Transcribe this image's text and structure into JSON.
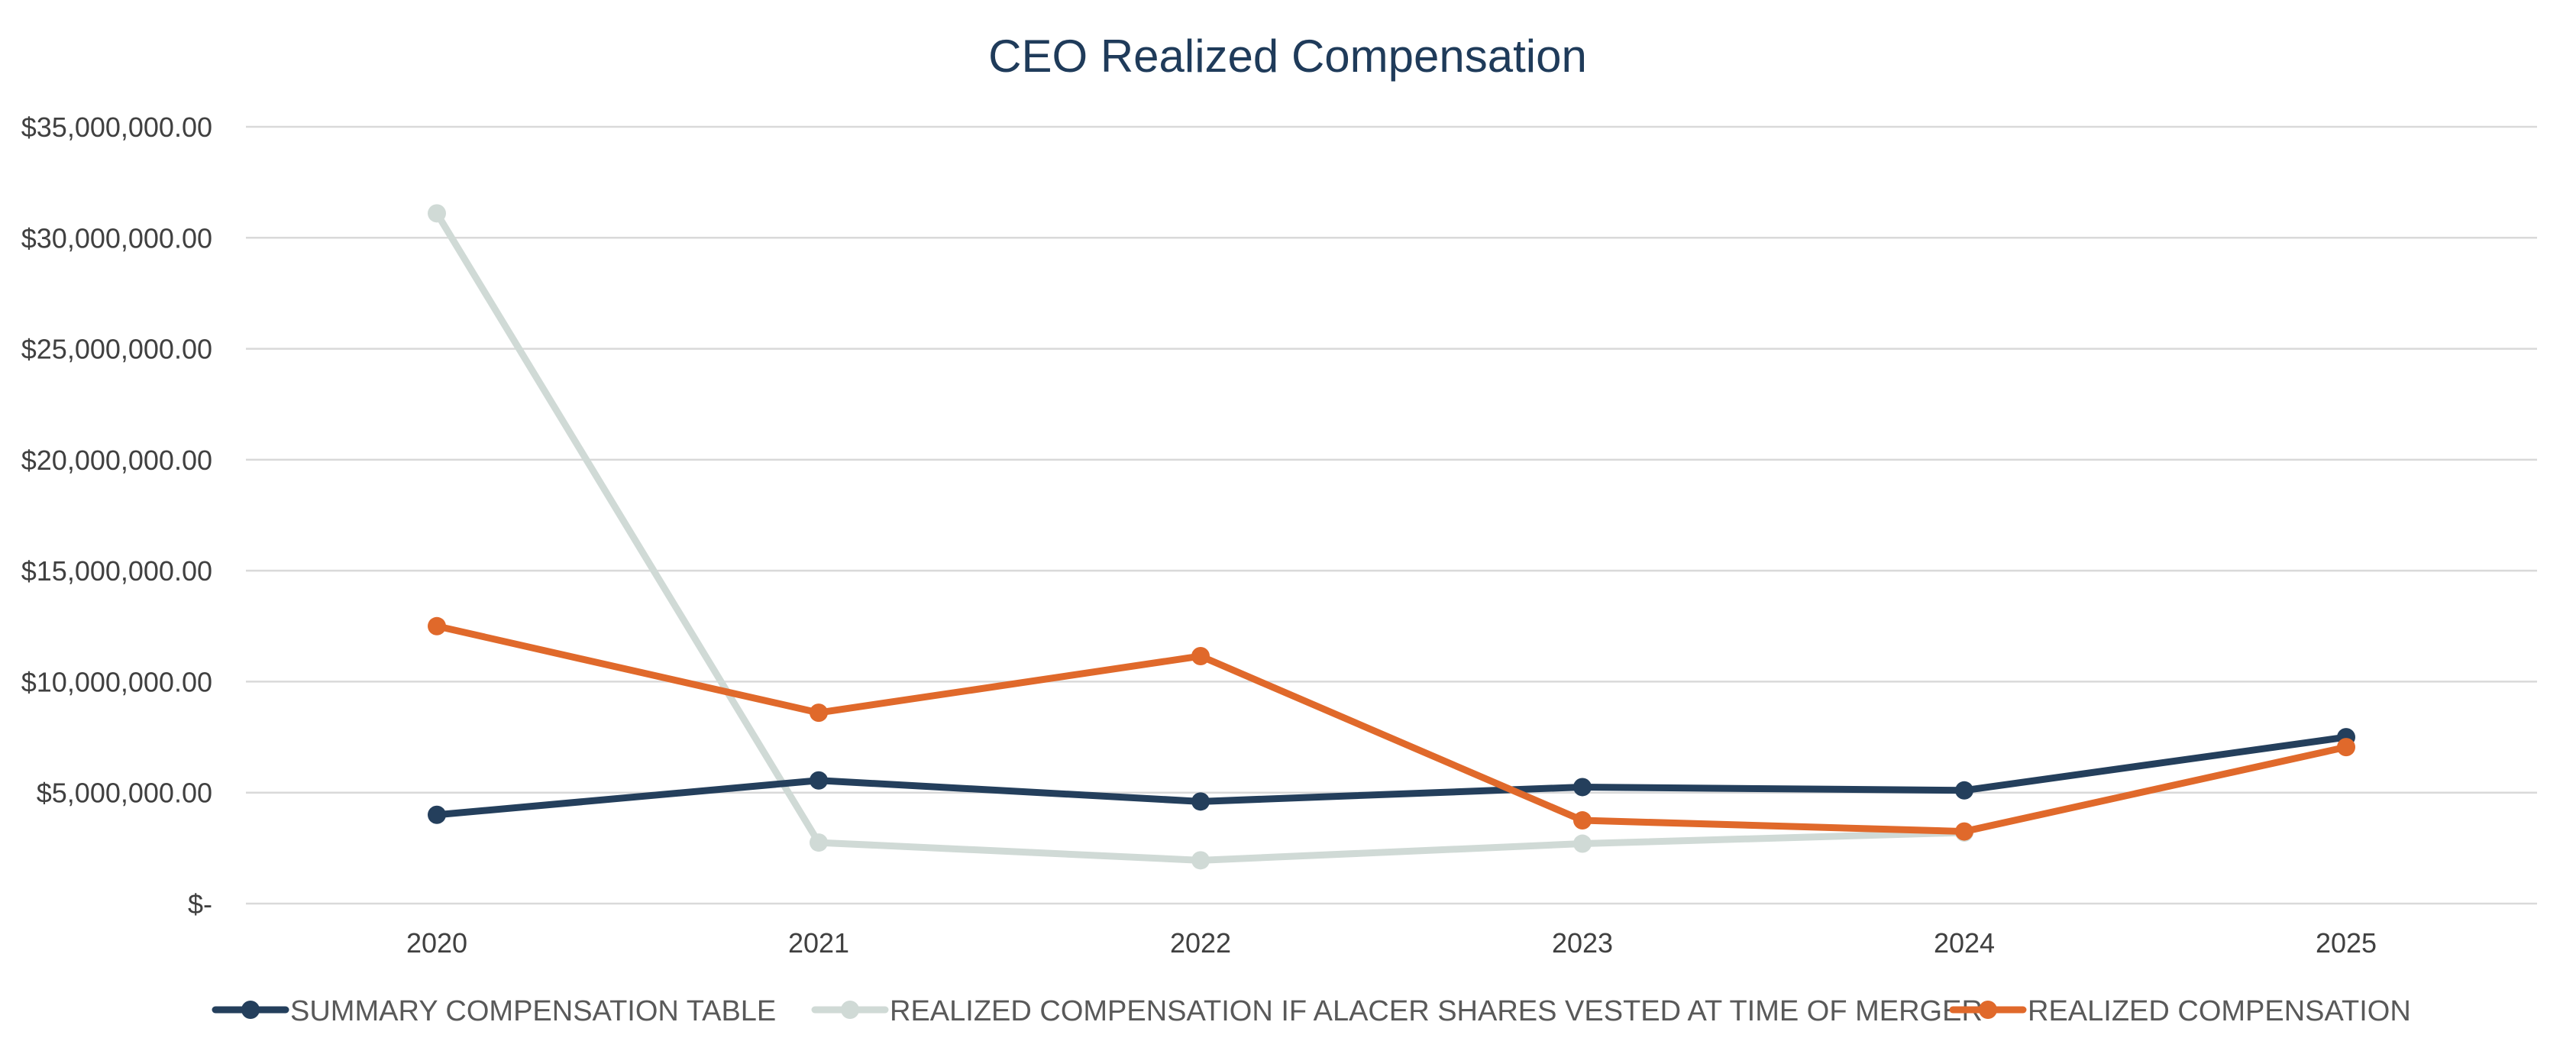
{
  "chart_data": {
    "type": "line",
    "title": "CEO Realized Compensation",
    "xlabel": "",
    "ylabel": "",
    "categories": [
      "2020",
      "2021",
      "2022",
      "2023",
      "2024",
      "2025"
    ],
    "y_ticks": [
      0,
      5000000,
      10000000,
      15000000,
      20000000,
      25000000,
      30000000,
      35000000
    ],
    "y_tick_labels": [
      "$-",
      "$5,000,000.00",
      "$10,000,000.00",
      "$15,000,000.00",
      "$20,000,000.00",
      "$25,000,000.00",
      "$30,000,000.00",
      "$35,000,000.00"
    ],
    "ylim": [
      0,
      35000000
    ],
    "grid": true,
    "legend_position": "bottom",
    "series": [
      {
        "name": "SUMMARY COMPENSATION TABLE",
        "color": "#243f5c",
        "values": [
          4000000,
          5550000,
          4600000,
          5250000,
          5100000,
          7500000
        ]
      },
      {
        "name": "REALIZED COMPENSATION IF ALACER SHARES VESTED AT TIME OF MERGER",
        "color": "#d0dad6",
        "values": [
          31100000,
          2750000,
          1950000,
          2700000,
          3200000,
          null
        ]
      },
      {
        "name": "REALIZED COMPENSATION",
        "color": "#e0692b",
        "values": [
          12500000,
          8600000,
          11150000,
          3750000,
          3250000,
          7050000
        ]
      }
    ]
  }
}
